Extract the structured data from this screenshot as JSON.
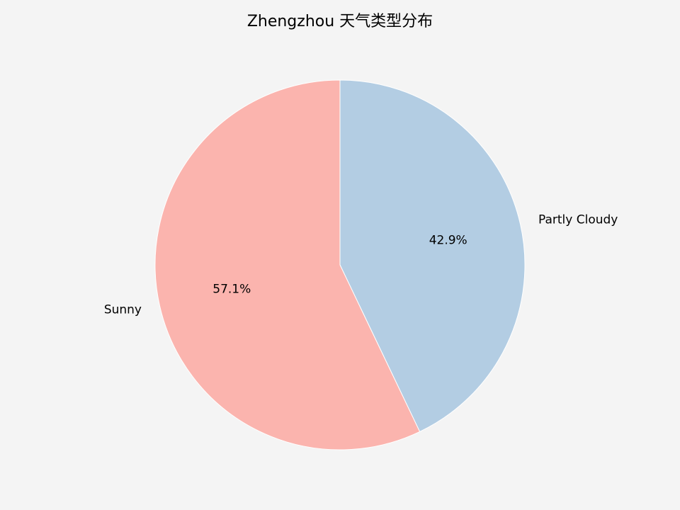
{
  "chart_data": {
    "type": "pie",
    "title": "Zhengzhou 天气类型分布",
    "slices": [
      {
        "label": "Partly Cloudy",
        "value": 42.9,
        "pct_label": "42.9%",
        "color": "#b3cde3"
      },
      {
        "label": "Sunny",
        "value": 57.1,
        "pct_label": "57.1%",
        "color": "#fbb4ae"
      }
    ],
    "start_angle_deg": 90,
    "direction": "clockwise",
    "edge_color": "#ffffff",
    "background": "#f4f4f4"
  }
}
